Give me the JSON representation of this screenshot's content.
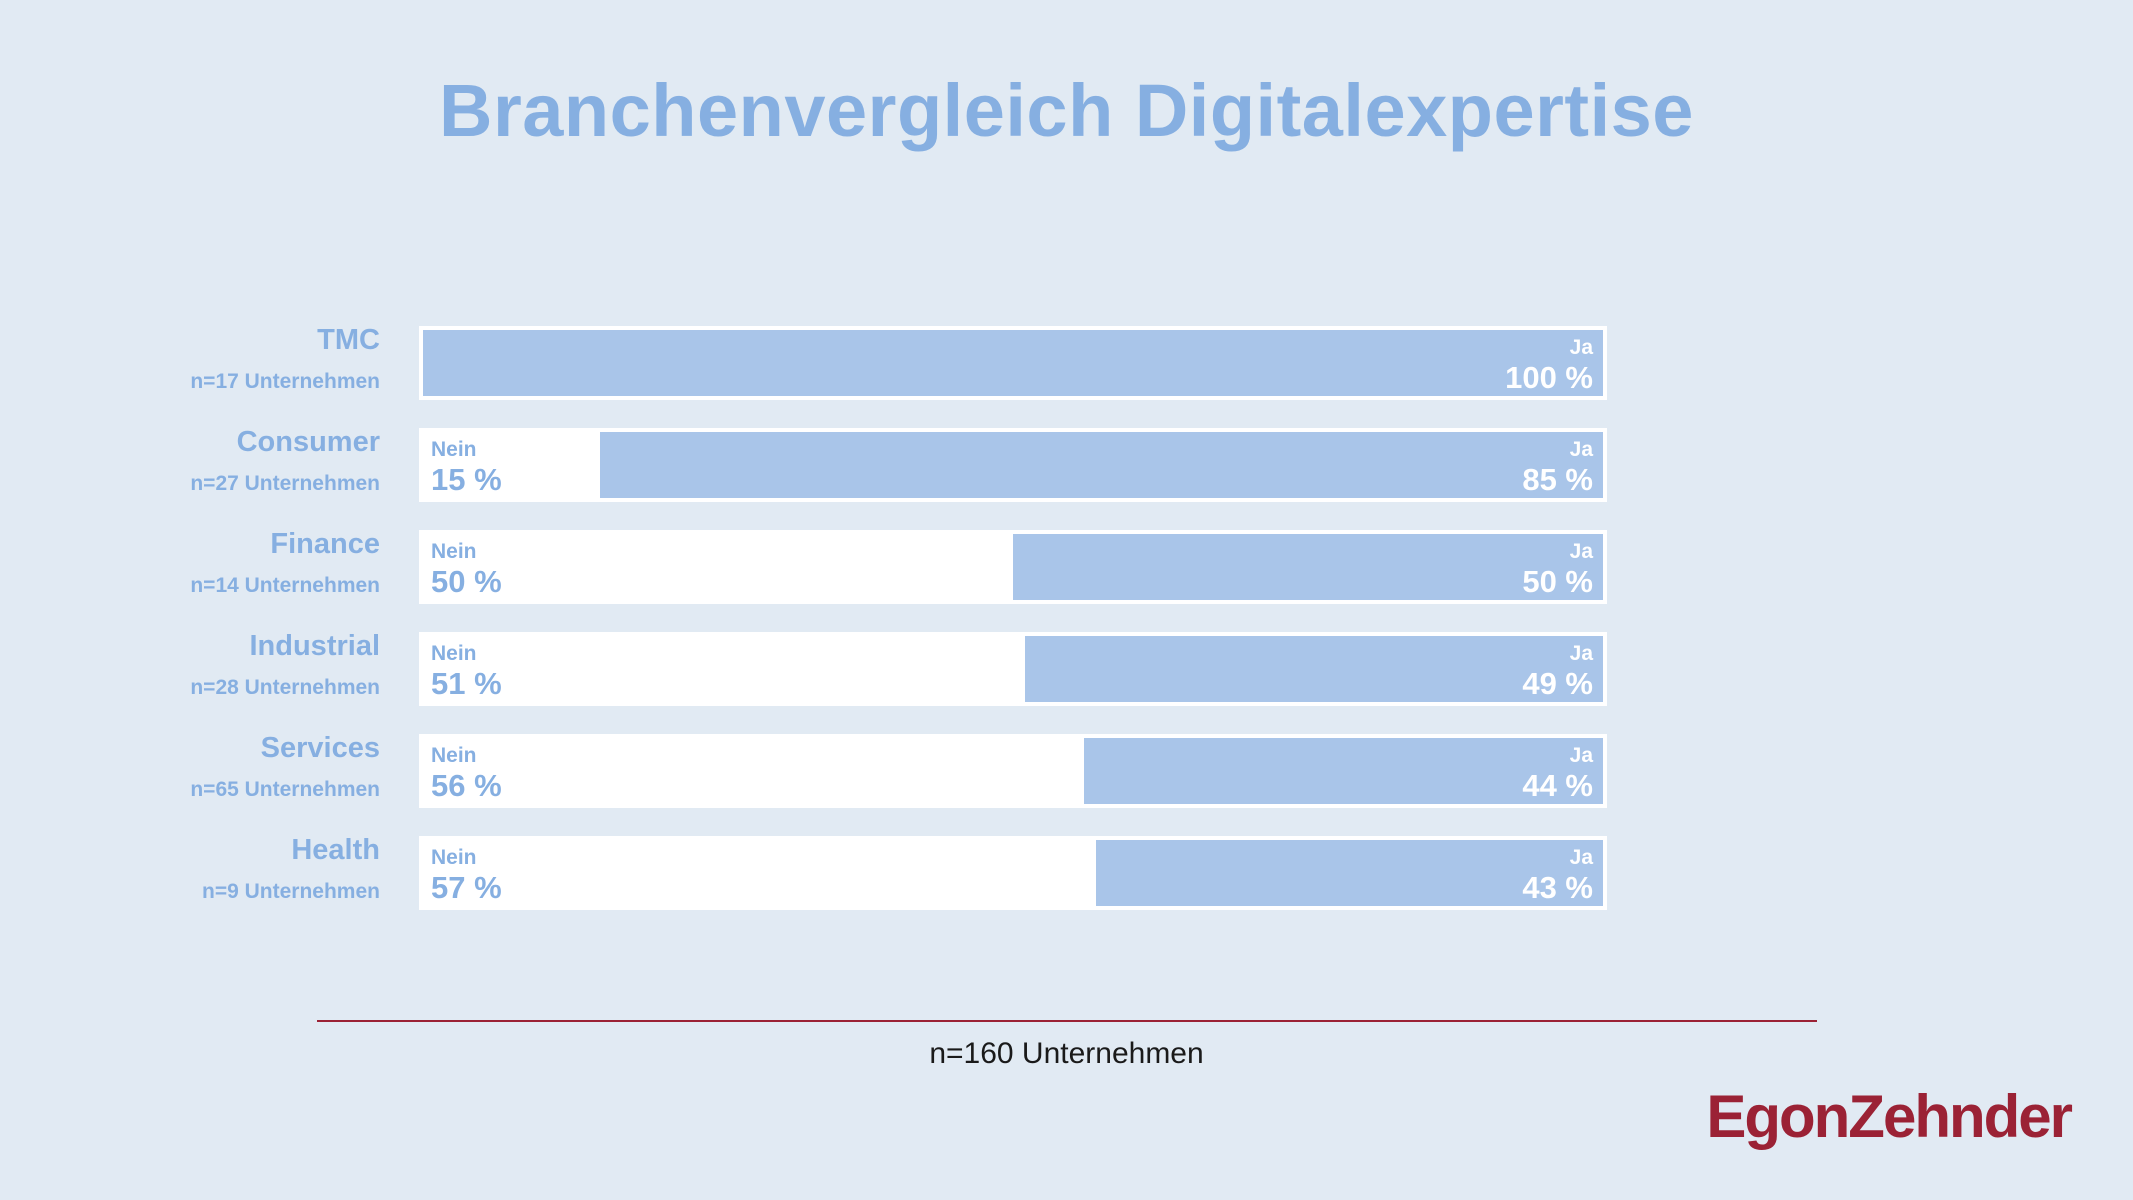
{
  "title": "Branchenvergleich Digitalexpertise",
  "footnote": "n=160 Unternehmen",
  "logo": "EgonZehnder",
  "colors": {
    "background": "#e1eaf3",
    "ja_bar": "#a9c5e9",
    "nein_bar": "#ffffff",
    "text_accent": "#86afe1",
    "brand": "#9b2235"
  },
  "chart_data": {
    "type": "bar",
    "orientation": "horizontal",
    "stacked": true,
    "normalized_to_100": true,
    "title": "Branchenvergleich Digitalexpertise",
    "categories": [
      "TMC",
      "Consumer",
      "Finance",
      "Industrial",
      "Services",
      "Health"
    ],
    "category_notes": [
      "n=17 Unternehmen",
      "n=27 Unternehmen",
      "n=14 Unternehmen",
      "n=28 Unternehmen",
      "n=65 Unternehmen",
      "n=9 Unternehmen"
    ],
    "series": [
      {
        "name": "Nein",
        "values": [
          0,
          15,
          50,
          51,
          56,
          57
        ],
        "labels": [
          "",
          "15 %",
          "50 %",
          "51 %",
          "56 %",
          "57 %"
        ]
      },
      {
        "name": "Ja",
        "values": [
          100,
          85,
          50,
          49,
          44,
          43
        ],
        "labels": [
          "100 %",
          "85 %",
          "50 %",
          "49 %",
          "44 %",
          "43 %"
        ]
      }
    ],
    "xlim": [
      0,
      100
    ],
    "grid": false,
    "legend": "none"
  }
}
